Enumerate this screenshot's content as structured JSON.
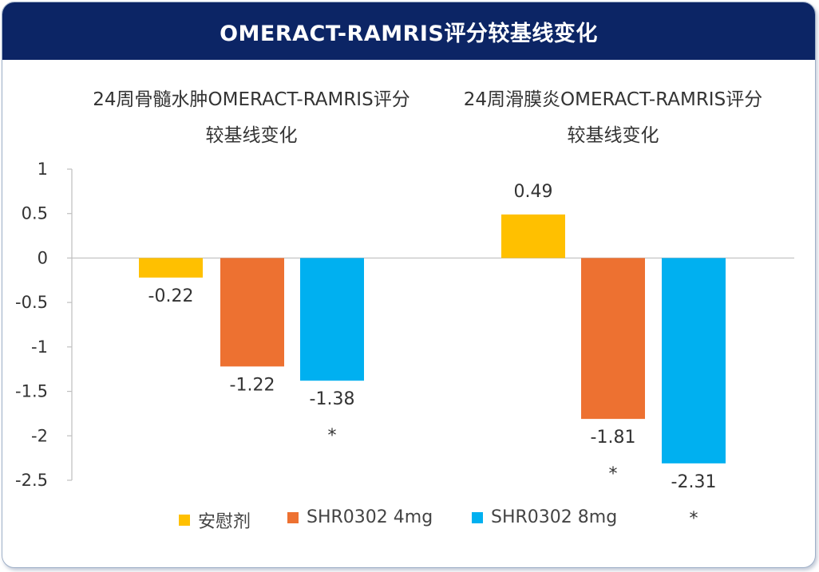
{
  "header": {
    "title": "OMERACT-RAMRIS评分较基线变化"
  },
  "chart_data": [
    {
      "type": "bar",
      "title_line1": "24周骨髓水肿OMERACT-RAMRIS评分",
      "title_line2": "较基线变化",
      "categories": [
        "安慰剂",
        "SHR0302 4mg",
        "SHR0302 8mg"
      ],
      "values": [
        -0.22,
        -1.22,
        -1.38
      ],
      "value_labels": [
        "-0.22",
        "-1.22",
        "-1.38"
      ],
      "significance": [
        "",
        "",
        "*"
      ],
      "ylim": [
        -2.5,
        1
      ],
      "yticks": [
        "1",
        "0.5",
        "0",
        "-0.5",
        "-1",
        "-1.5",
        "-2",
        "-2.5"
      ]
    },
    {
      "type": "bar",
      "title_line1": "24周滑膜炎OMERACT-RAMRIS评分",
      "title_line2": "较基线变化",
      "categories": [
        "安慰剂",
        "SHR0302 4mg",
        "SHR0302 8mg"
      ],
      "values": [
        0.49,
        -1.81,
        -2.31
      ],
      "value_labels": [
        "0.49",
        "-1.81",
        "-2.31"
      ],
      "significance": [
        "",
        "*",
        "*"
      ],
      "ylim": [
        -2.5,
        1
      ]
    }
  ],
  "legend": [
    {
      "label": "安慰剂",
      "color": "#ffc000"
    },
    {
      "label": "SHR0302 4mg",
      "color": "#ed7131"
    },
    {
      "label": "SHR0302 8mg",
      "color": "#00b0f0"
    }
  ]
}
